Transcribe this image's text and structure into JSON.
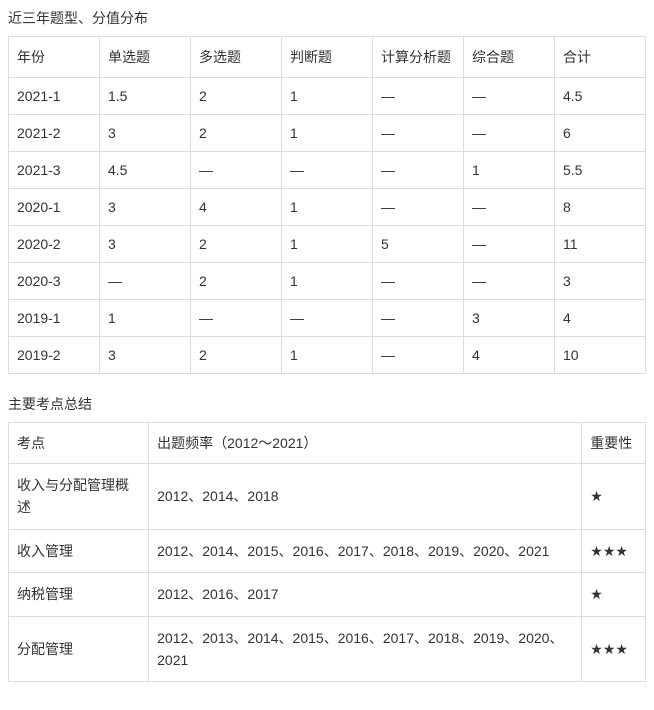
{
  "section1": {
    "title": "近三年题型、分值分布",
    "columns": [
      "年份",
      "单选题",
      "多选题",
      "判断题",
      "计算分析题",
      "综合题",
      "合计"
    ],
    "rows": [
      [
        "2021-1",
        "1.5",
        "2",
        "1",
        "—",
        "—",
        "4.5"
      ],
      [
        "2021-2",
        "3",
        "2",
        "1",
        "—",
        "—",
        "6"
      ],
      [
        "2021-3",
        "4.5",
        "—",
        "—",
        "—",
        "1",
        "5.5"
      ],
      [
        "2020-1",
        "3",
        "4",
        "1",
        "—",
        "—",
        "8"
      ],
      [
        "2020-2",
        "3",
        "2",
        "1",
        "5",
        "—",
        "11"
      ],
      [
        "2020-3",
        "—",
        "2",
        "1",
        "—",
        "—",
        "3"
      ],
      [
        "2019-1",
        "1",
        "—",
        "—",
        "—",
        "3",
        "4"
      ],
      [
        "2019-2",
        "3",
        "2",
        "1",
        "—",
        "4",
        "10"
      ]
    ]
  },
  "section2": {
    "title": "主要考点总结",
    "columns": [
      "考点",
      "出题频率（2012～2021）",
      "重要性"
    ],
    "rows": [
      [
        "收入与分配管理概述",
        "2012、2014、2018",
        "★"
      ],
      [
        "收入管理",
        "2012、2014、2015、2016、2017、2018、2019、2020、2021",
        "★★★"
      ],
      [
        "纳税管理",
        "2012、2016、2017",
        "★"
      ],
      [
        "分配管理",
        "2012、2013、2014、2015、2016、2017、2018、2019、2020、2021",
        "★★★"
      ]
    ]
  }
}
